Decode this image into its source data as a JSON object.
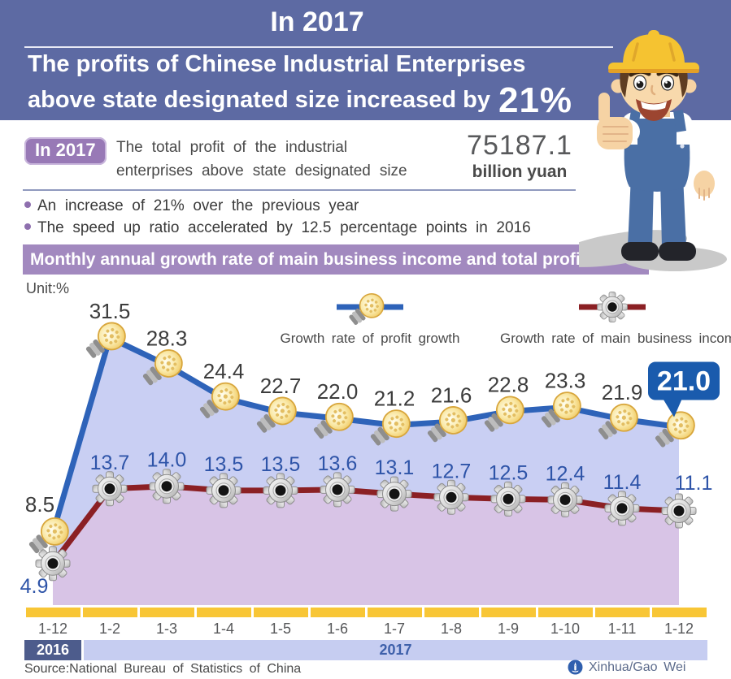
{
  "header": {
    "title": "In 2017",
    "line1": "The profits of Chinese Industrial Enterprises",
    "line2": "above state designated size increased by",
    "highlight": "21%"
  },
  "summary": {
    "badge": "In 2017",
    "text": "The total profit of the industrial\nenterprises above state designated size",
    "value": "75187.1",
    "unit": "billion yuan",
    "bullets": [
      "An increase of 21% over the previous year",
      "The speed up ratio accelerated by 12.5 percentage points in 2016"
    ]
  },
  "banner": "Monthly annual growth rate of main business income and total profit",
  "chart_data": {
    "type": "line",
    "unit_label": "Unit:%",
    "categories": [
      "1-12",
      "1-2",
      "1-3",
      "1-4",
      "1-5",
      "1-6",
      "1-7",
      "1-8",
      "1-9",
      "1-10",
      "1-11",
      "1-12"
    ],
    "series": [
      {
        "name": "Growth rate of profit growth",
        "marker": "bulb-icon",
        "color": "#2E63B9",
        "fill": "#C9CFF3",
        "label_color": "#3C3C3C",
        "values": [
          8.5,
          31.5,
          28.3,
          24.4,
          22.7,
          22.0,
          21.2,
          21.6,
          22.8,
          23.3,
          21.9,
          21.0
        ]
      },
      {
        "name": "Growth rate of main business income",
        "marker": "gear-icon",
        "color": "#8B2024",
        "fill": "#D8C4E6",
        "label_color": "#2E54A8",
        "values": [
          4.9,
          13.7,
          14.0,
          13.5,
          13.5,
          13.6,
          13.1,
          12.7,
          12.5,
          12.4,
          11.4,
          11.1
        ]
      }
    ],
    "callout_value": "21.0",
    "callout_color": "#1A5BAD",
    "year_groups": [
      {
        "label": "2016"
      },
      {
        "label": "2017"
      }
    ],
    "ylim": [
      0,
      35
    ],
    "legend_position": "top",
    "grid": false
  },
  "axis": {
    "bar_color": "#F8C636"
  },
  "colors": {
    "header_bg": "#5D6AA3",
    "badge_bg": "#9879B6",
    "banner_bg": "#A289BF",
    "year_2016_bg": "#4D5C8C",
    "year_2017_bg": "#C6CDF1"
  },
  "footer": {
    "source": "Source:National Bureau of Statistics of China",
    "credit": "Xinhua/Gao Wei"
  }
}
